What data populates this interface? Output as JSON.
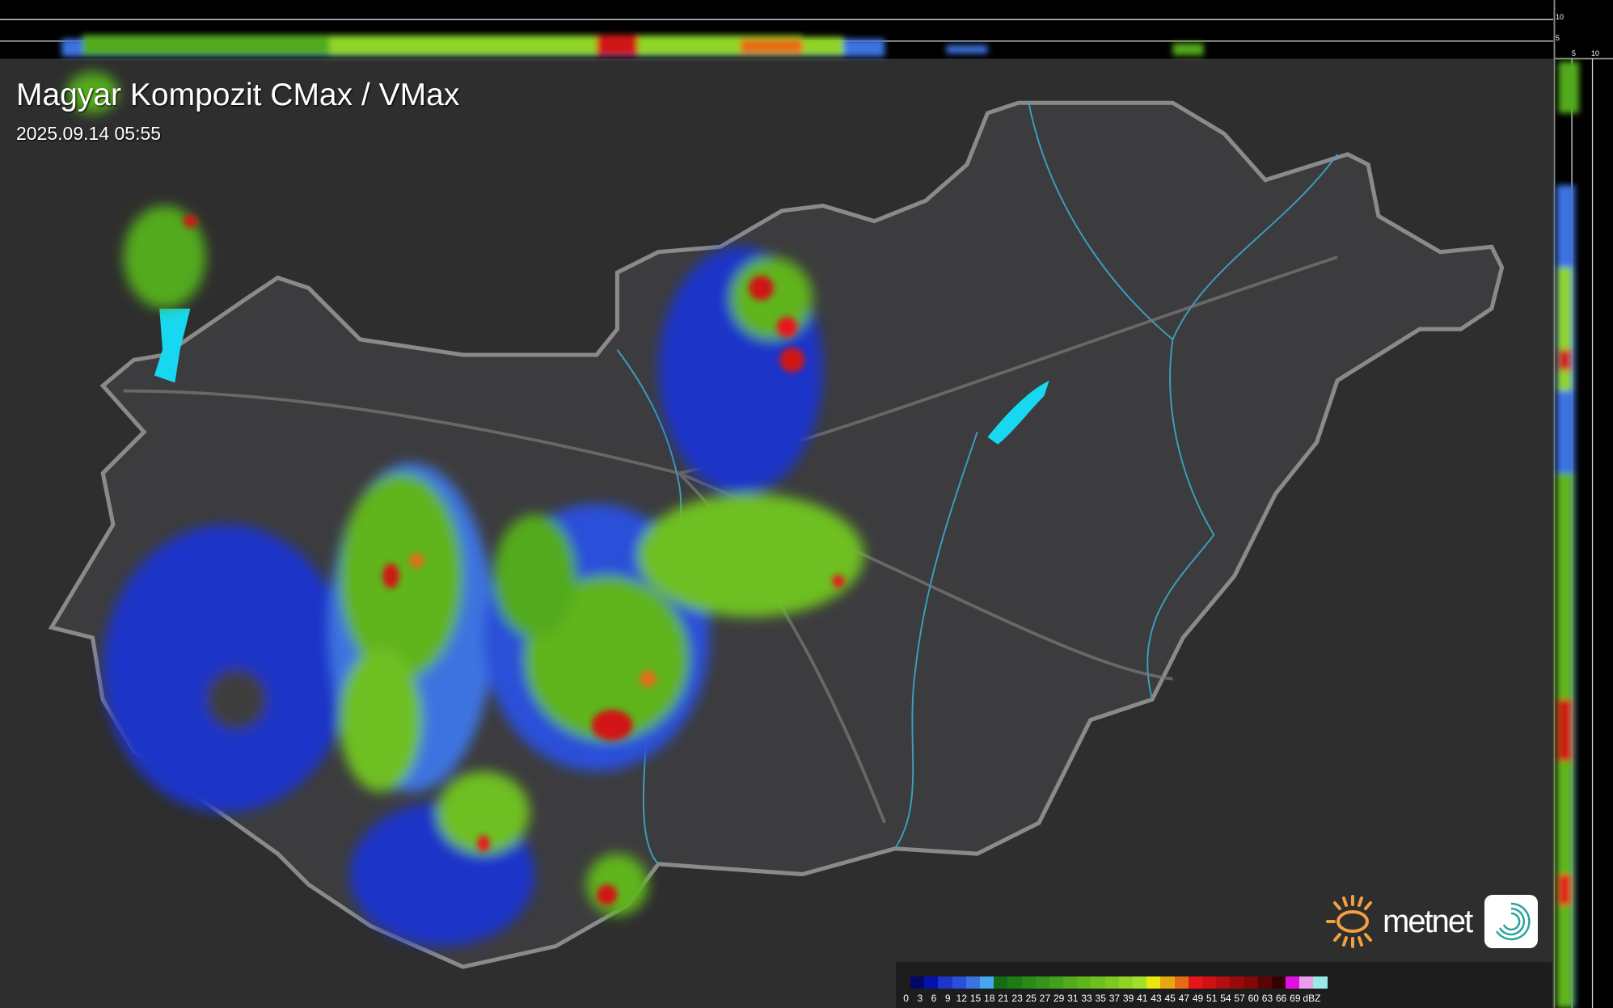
{
  "header": {
    "title": "Magyar Kompozit CMax / VMax",
    "timestamp": "2025.09.14 05:55"
  },
  "profile_axes": {
    "top_labels": [
      "10",
      "5"
    ],
    "right_labels": [
      "5",
      "10"
    ]
  },
  "legend": {
    "unit": "dBZ",
    "labels": [
      "0",
      "3",
      "6",
      "9",
      "12",
      "15",
      "18",
      "21",
      "23",
      "25",
      "27",
      "29",
      "31",
      "33",
      "35",
      "37",
      "39",
      "41",
      "43",
      "45",
      "47",
      "49",
      "51",
      "54",
      "57",
      "60",
      "63",
      "66",
      "69"
    ],
    "colors": [
      "#030766",
      "#0511a8",
      "#1f34c8",
      "#2a4fd8",
      "#3c73e0",
      "#48a6ec",
      "#136e12",
      "#1b7d12",
      "#2a8a18",
      "#34951a",
      "#43a01a",
      "#52aa1c",
      "#60b41e",
      "#6ebf20",
      "#7fc823",
      "#8fd425",
      "#a2df28",
      "#e8e80e",
      "#e8a810",
      "#e56c14",
      "#e8161a",
      "#d01214",
      "#b40e10",
      "#9a0a0c",
      "#800808",
      "#5a0404",
      "#320202",
      "#e010e0",
      "#e8a0e8",
      "#9ae8e8"
    ]
  },
  "branding": {
    "logo_text": "metnet",
    "accent": "#f0a040",
    "app_icon": "spiral-logo-icon"
  },
  "map": {
    "background": "#2e2e2e",
    "country_fill": "#3c3c3e",
    "border_color": "#8a8a8a",
    "river_color": "#3aa0c0",
    "lake_color": "#17d8f0"
  }
}
